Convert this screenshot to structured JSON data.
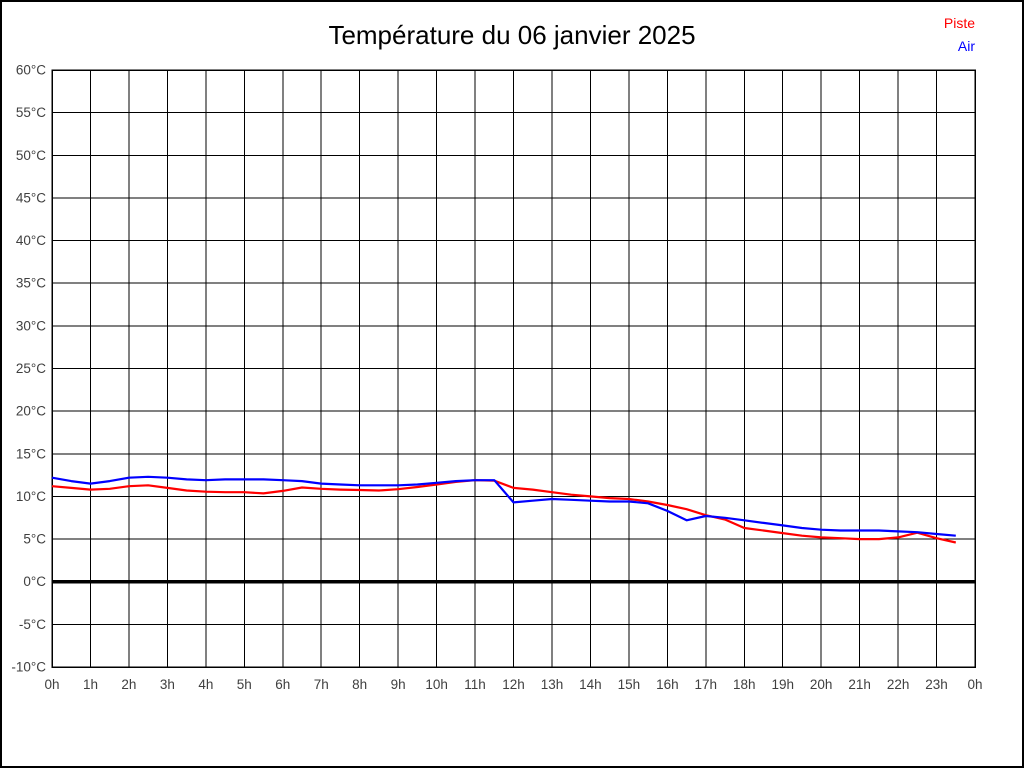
{
  "title": "Température du 06 janvier 2025",
  "legend": {
    "items": [
      {
        "label": "Piste",
        "color": "#ff0000"
      },
      {
        "label": "Air",
        "color": "#0000ff"
      }
    ]
  },
  "colors": {
    "grid": "#000000",
    "frame": "#000000",
    "zero_line": "#000000",
    "axis_text": "#404040",
    "title_text": "#000000",
    "background": "#ffffff"
  },
  "chart_data": {
    "type": "line",
    "title": "Température du 06 janvier 2025",
    "xlabel": "",
    "ylabel": "°C",
    "xlim": [
      0,
      24
    ],
    "ylim": [
      -10,
      60
    ],
    "grid": true,
    "legend_position": "top-right",
    "zero_line_value": 0,
    "x_tick_values": [
      0,
      1,
      2,
      3,
      4,
      5,
      6,
      7,
      8,
      9,
      10,
      11,
      12,
      13,
      14,
      15,
      16,
      17,
      18,
      19,
      20,
      21,
      22,
      23,
      24
    ],
    "x_tick_labels": [
      "0h",
      "1h",
      "2h",
      "3h",
      "4h",
      "5h",
      "6h",
      "7h",
      "8h",
      "9h",
      "10h",
      "11h",
      "12h",
      "13h",
      "14h",
      "15h",
      "16h",
      "17h",
      "18h",
      "19h",
      "20h",
      "21h",
      "22h",
      "23h",
      "0h"
    ],
    "y_tick_values": [
      -10,
      -5,
      0,
      5,
      10,
      15,
      20,
      25,
      30,
      35,
      40,
      45,
      50,
      55,
      60
    ],
    "y_tick_labels": [
      "-10°C",
      "-5°C",
      "0°C",
      "5°C",
      "10°C",
      "15°C",
      "20°C",
      "25°C",
      "30°C",
      "35°C",
      "40°C",
      "45°C",
      "50°C",
      "55°C",
      "60°C"
    ],
    "x": [
      0,
      0.5,
      1,
      1.5,
      2,
      2.5,
      3,
      3.5,
      4,
      4.5,
      5,
      5.5,
      6,
      6.5,
      7,
      7.5,
      8,
      8.5,
      9,
      9.5,
      10,
      10.5,
      11,
      11.5,
      12,
      12.5,
      13,
      13.5,
      14,
      14.5,
      15,
      15.5,
      16,
      16.5,
      17,
      17.5,
      18,
      18.5,
      19,
      19.5,
      20,
      20.5,
      21,
      21.5,
      22,
      22.5,
      23,
      23.5
    ],
    "series": [
      {
        "name": "Piste",
        "color": "#ff0000",
        "values": [
          11.2,
          11.0,
          10.8,
          10.9,
          11.2,
          11.3,
          11.0,
          10.7,
          10.55,
          10.5,
          10.5,
          10.35,
          10.65,
          11.05,
          10.9,
          10.8,
          10.75,
          10.7,
          10.85,
          11.1,
          11.4,
          11.7,
          11.9,
          11.85,
          11.0,
          10.8,
          10.5,
          10.2,
          10.0,
          9.8,
          9.7,
          9.4,
          9.0,
          8.5,
          7.8,
          7.3,
          6.3,
          6.0,
          5.7,
          5.4,
          5.2,
          5.1,
          5.0,
          5.0,
          5.2,
          5.75,
          5.1,
          4.6
        ]
      },
      {
        "name": "Air",
        "color": "#0000ff",
        "values": [
          12.2,
          11.8,
          11.5,
          11.8,
          12.2,
          12.3,
          12.2,
          12.0,
          11.9,
          12.0,
          12.0,
          12.0,
          11.9,
          11.8,
          11.5,
          11.4,
          11.3,
          11.3,
          11.3,
          11.4,
          11.6,
          11.8,
          11.9,
          11.9,
          9.3,
          9.5,
          9.7,
          9.6,
          9.5,
          9.4,
          9.4,
          9.2,
          8.3,
          7.2,
          7.7,
          7.5,
          7.2,
          6.9,
          6.6,
          6.3,
          6.1,
          6.0,
          6.0,
          6.0,
          5.9,
          5.8,
          5.6,
          5.4
        ]
      }
    ]
  }
}
